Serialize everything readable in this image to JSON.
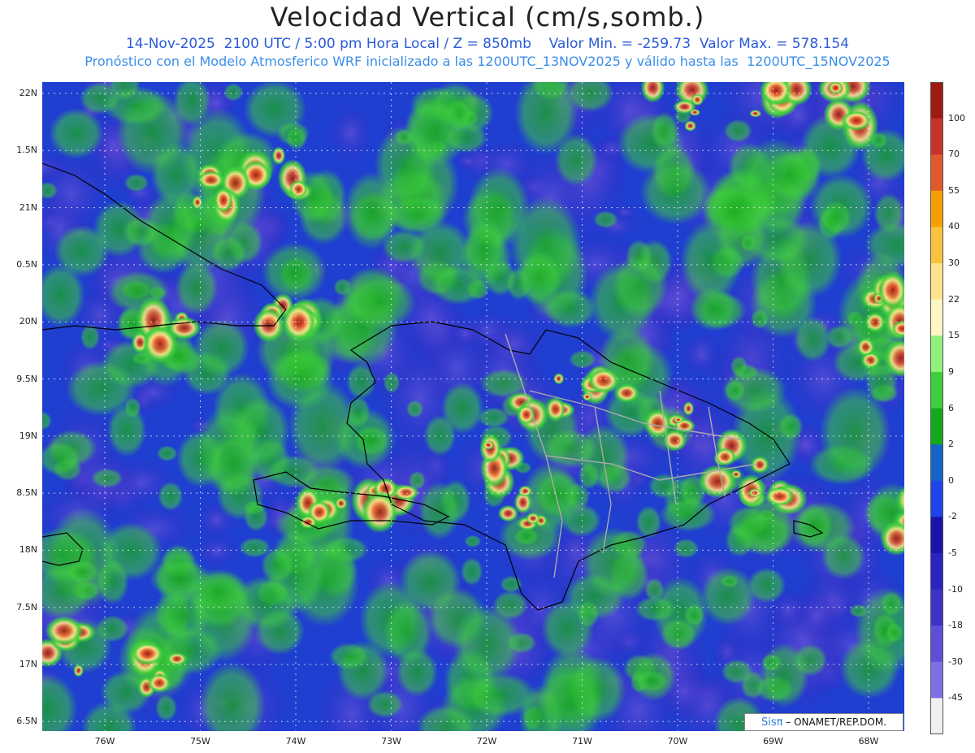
{
  "header": {
    "title": "Velocidad Vertical (cm/s,somb.)",
    "subtitle": "14-Nov-2025  2100 UTC / 5:00 pm Hora Local / Z = 850mb    Valor Min. = -259.73  Valor Max. = 578.154",
    "model_info": "Pronóstico con el Modelo Atmosferico WRF inicializado a las 1200UTC_13NOV2025 y válido hasta las  1200UTC_15NOV2025"
  },
  "lat_labels": [
    "22N",
    "1.5N",
    "21N",
    "0.5N",
    "20N",
    "9.5N",
    "19N",
    "8.5N",
    "18N",
    "7.5N",
    "17N",
    "6.5N"
  ],
  "lon_labels": [
    "76W",
    "75W",
    "74W",
    "73W",
    "72W",
    "71W",
    "70W",
    "69W",
    "68W"
  ],
  "colorbar": {
    "labels": [
      "100",
      "70",
      "55",
      "40",
      "30",
      "22",
      "15",
      "9",
      "6",
      "2",
      "0",
      "-2",
      "-5",
      "-10",
      "-18",
      "-30",
      "-45"
    ],
    "colors": [
      "#9e1b14",
      "#c83228",
      "#e05a2e",
      "#f5a000",
      "#fbc23e",
      "#fde48a",
      "#fff6c6",
      "#8ff27a",
      "#3fcf3c",
      "#16a81c",
      "#1565c8",
      "#1f45e8",
      "#1b13a8",
      "#2a24c0",
      "#3e33c8",
      "#5d4fd8",
      "#7e6fe6",
      "#f0f0f0"
    ]
  },
  "credit": {
    "logo": "Sisπ",
    "text": "– ONAMET/REP.DOM."
  }
}
